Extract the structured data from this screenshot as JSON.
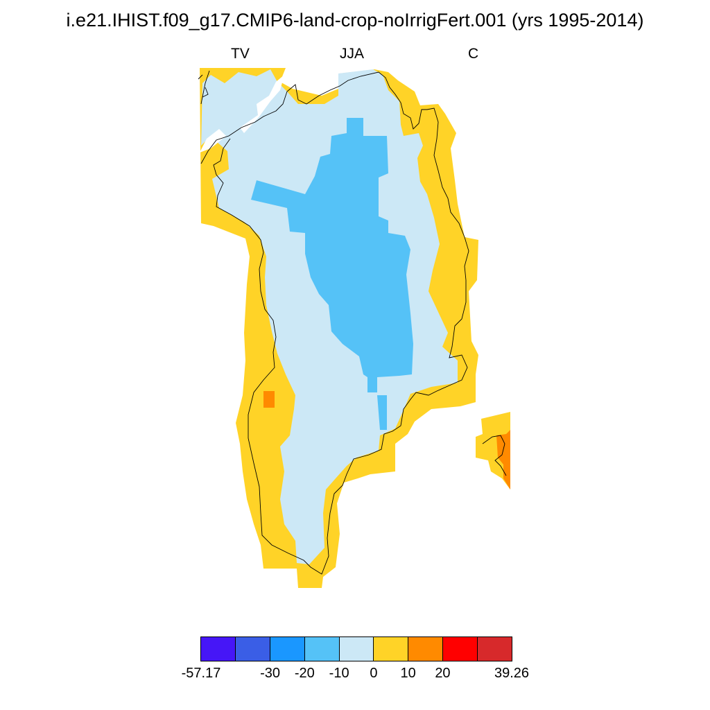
{
  "title": "i.e21.IHIST.f09_g17.CMIP6-land-crop-noIrrigFert.001 (yrs 1995-2014)",
  "subtitle": {
    "left": "TV",
    "center": "JJA",
    "right": "C"
  },
  "colorbar": {
    "colors": [
      "#4616f7",
      "#3a5ee6",
      "#1a97ff",
      "#55c2f7",
      "#cce8f6",
      "#ffd327",
      "#ff8a00",
      "#ff0000",
      "#d7292b"
    ],
    "tick_labels": [
      "-57.17",
      "-30",
      "-20",
      "-10",
      "0",
      "10",
      "20",
      "39.26"
    ]
  },
  "map": {
    "region": "Greenland",
    "variable": "TV",
    "season": "JJA",
    "units": "C",
    "colors": {
      "pale_blue": "#cce8f6",
      "mid_blue": "#55c2f7",
      "yellow": "#ffd327",
      "orange": "#ff8a00"
    }
  }
}
